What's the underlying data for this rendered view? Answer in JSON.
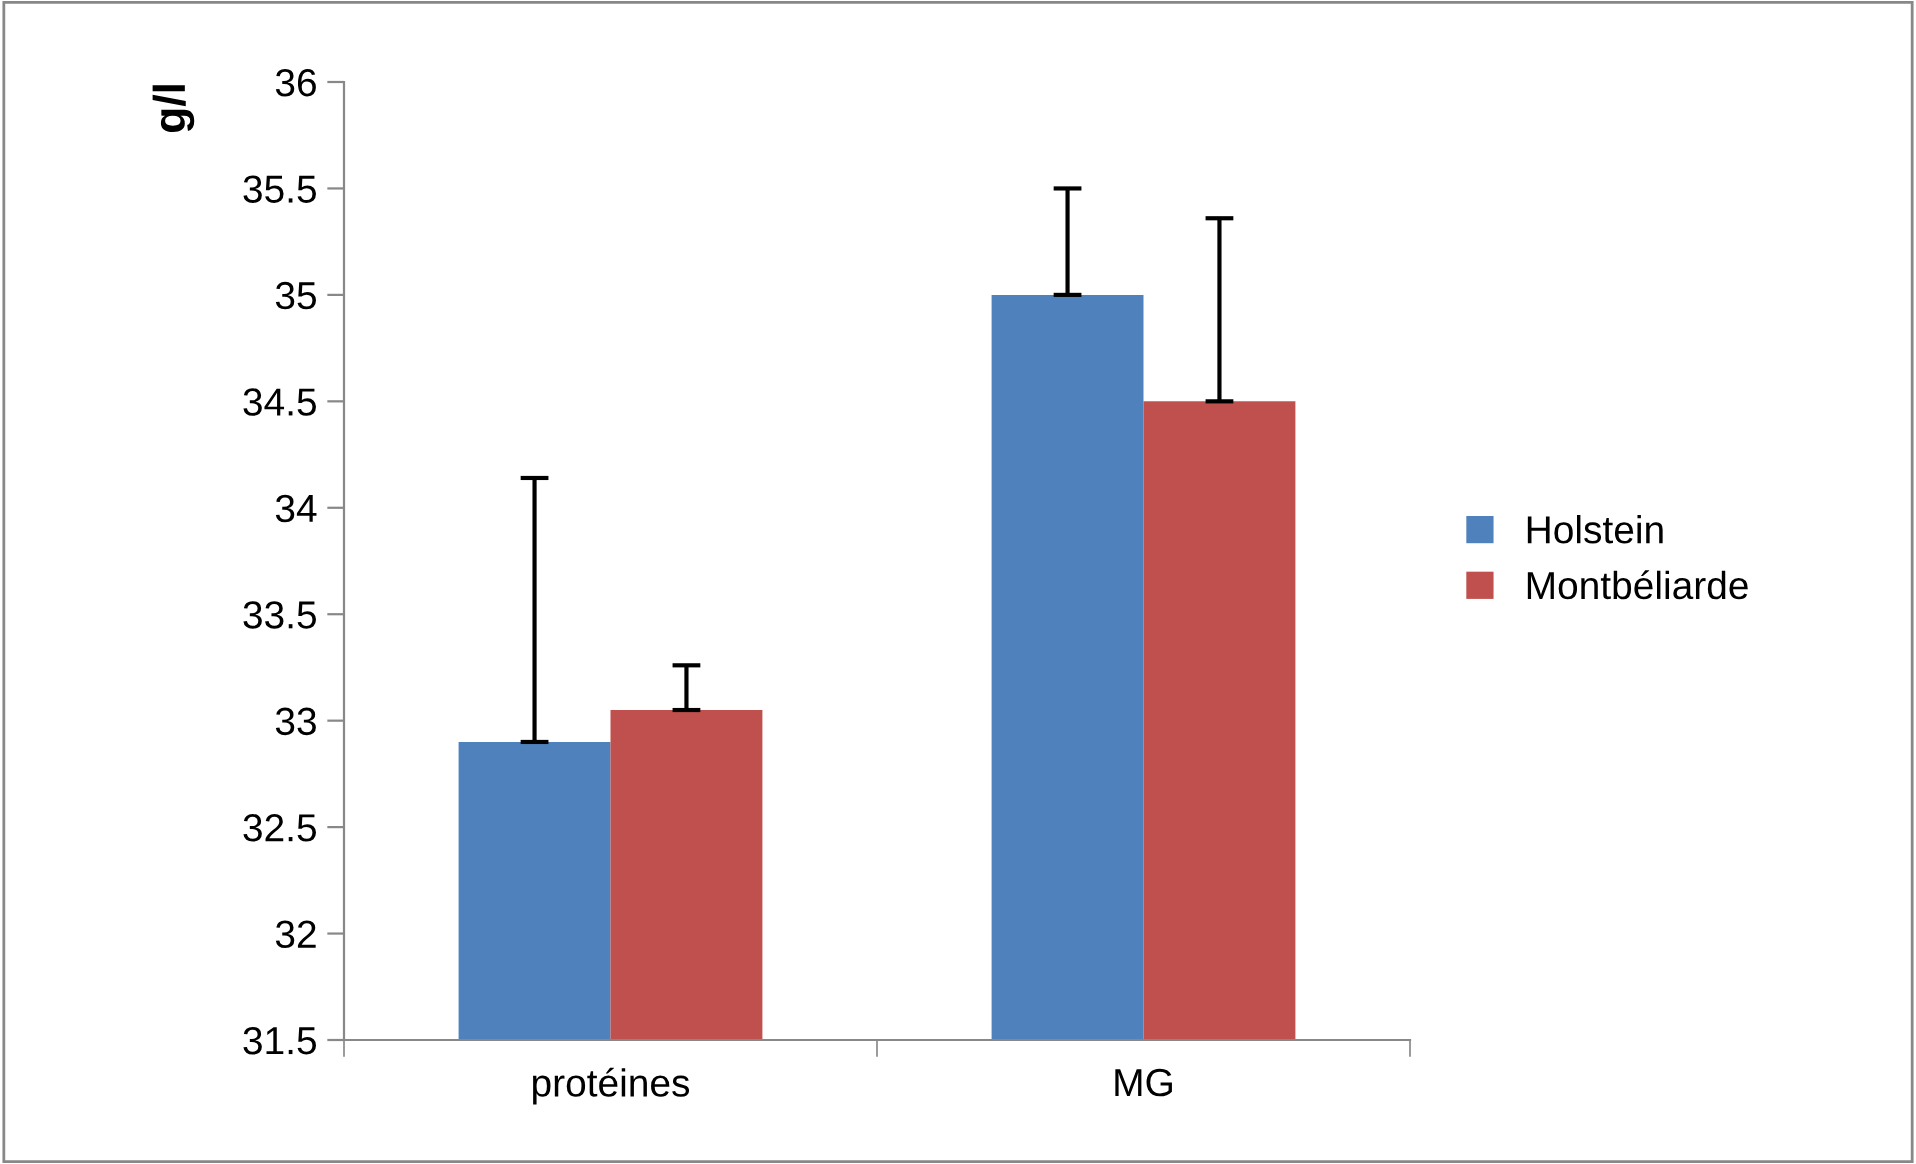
{
  "chart_data": {
    "type": "bar",
    "ylabel": "g/l",
    "categories": [
      "protéines",
      "MG"
    ],
    "series": [
      {
        "name": "Holstein",
        "color": "#4f81bd",
        "values": [
          32.9,
          35.0
        ],
        "errors": [
          [
            32.9,
            34.14
          ],
          [
            35.0,
            35.5
          ]
        ]
      },
      {
        "name": "Montbéliarde",
        "color": "#c0504d",
        "values": [
          33.05,
          34.5
        ],
        "errors": [
          [
            33.05,
            33.26
          ],
          [
            34.5,
            35.36
          ]
        ]
      }
    ],
    "ylim": [
      31.5,
      36
    ],
    "yticks": [
      31.5,
      32,
      32.5,
      33,
      33.5,
      34,
      34.5,
      35,
      35.5,
      36
    ],
    "grid": false,
    "legend": "right"
  }
}
